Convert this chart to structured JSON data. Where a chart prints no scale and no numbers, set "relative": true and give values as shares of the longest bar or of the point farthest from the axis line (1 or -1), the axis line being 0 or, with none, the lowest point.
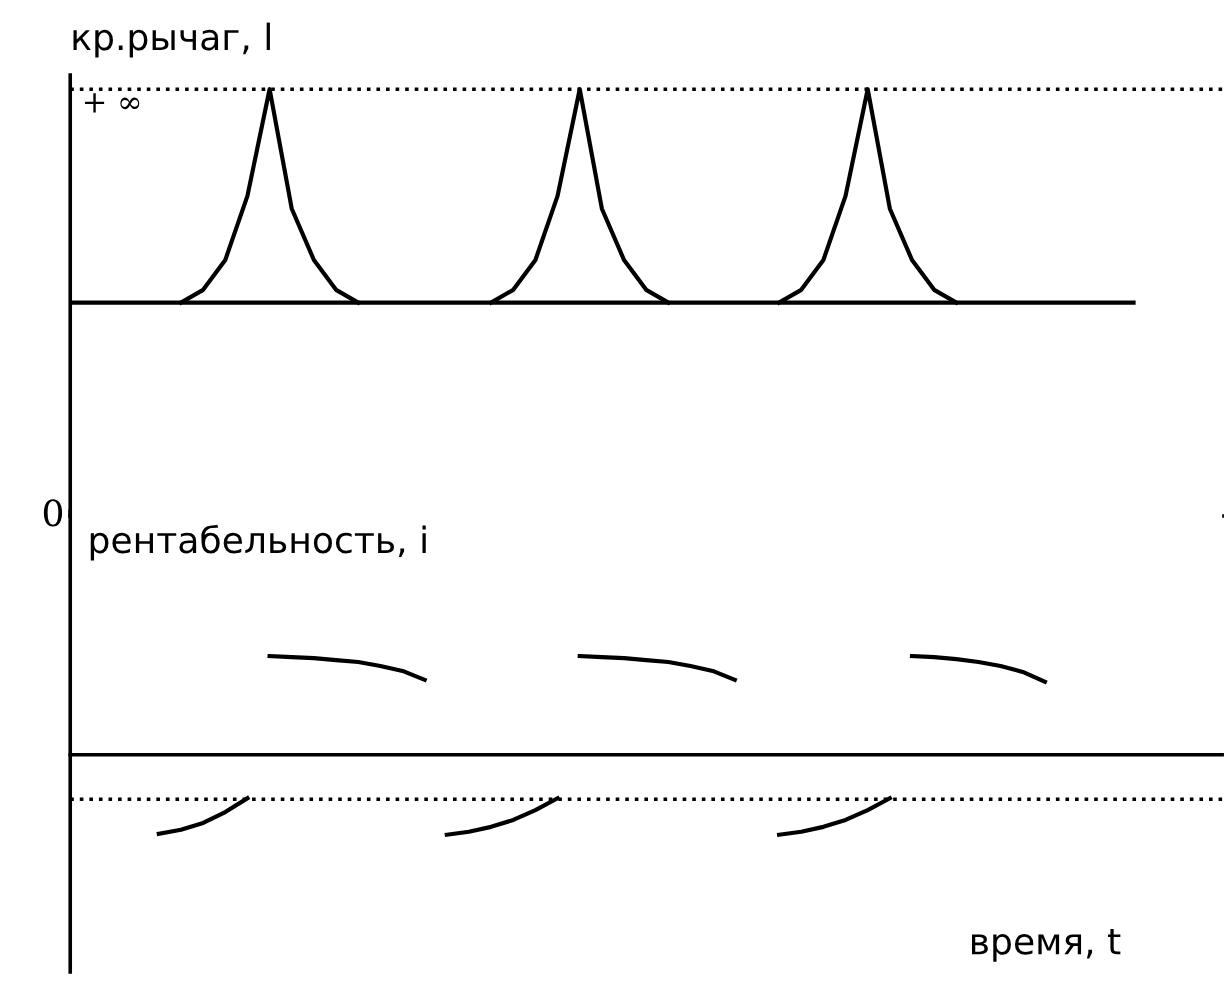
{
  "chart_data": [
    {
      "type": "line",
      "ylabel": "кр.рычаг, l",
      "relative": true,
      "marker": "none",
      "line_style": "solid",
      "categories": [
        null,
        null,
        null,
        null,
        null,
        null,
        null,
        null,
        null,
        null,
        null,
        null,
        null,
        null,
        null,
        null,
        null,
        null,
        null,
        null,
        null,
        null,
        null,
        null,
        null,
        null,
        null,
        null,
        null,
        null,
        null,
        null,
        null,
        null,
        null,
        null,
        null,
        null,
        null,
        null,
        null,
        null,
        null,
        null,
        null,
        null,
        null,
        null,
        null,
        null,
        null
      ],
      "annotations": [
        "0"
      ],
      "ref_lines": [
        {
          "axis": "y",
          "value": 1,
          "label": "+ ∞",
          "line_style": "dotted",
          "color": "#000000"
        }
      ],
      "series": [
        {
          "color": "#000000",
          "values": [
            0.5,
            0.5,
            0.5,
            0.5,
            0.5,
            0.5,
            0.5,
            0.5,
            0.5,
            0.5,
            0.5,
            0.5,
            0.5,
            0.5,
            0.5,
            0.5,
            0.5,
            0.5,
            0.5,
            0.5,
            0.5,
            0.5,
            0.5,
            0.5,
            0.5,
            0.5,
            0.5,
            0.5,
            0.5,
            0.5,
            0.5,
            0.5,
            0.5,
            0.5,
            0.5,
            0.5,
            0.5,
            0.5,
            0.5,
            0.5,
            0.5,
            0.5,
            0.5,
            0.5,
            0.5,
            0.5,
            0.5,
            0.5,
            0.5,
            null,
            null
          ]
        },
        {
          "color": "#000000",
          "values": [
            null,
            null,
            null,
            null,
            null,
            0.5,
            0.53,
            0.6,
            0.75,
            1,
            0.72,
            0.6,
            0.53,
            0.5,
            null,
            null,
            null,
            null,
            null,
            null,
            null,
            null,
            null,
            null,
            null,
            null,
            null,
            null,
            null,
            null,
            null,
            null,
            null,
            null,
            null,
            null,
            null,
            null,
            null,
            null,
            null,
            null,
            null,
            null,
            null,
            null,
            null,
            null,
            null,
            null,
            null
          ]
        },
        {
          "color": "#000000",
          "values": [
            null,
            null,
            null,
            null,
            null,
            null,
            null,
            null,
            null,
            null,
            null,
            null,
            null,
            null,
            null,
            null,
            null,
            null,
            null,
            0.5,
            0.53,
            0.6,
            0.75,
            1,
            0.72,
            0.6,
            0.53,
            0.5,
            null,
            null,
            null,
            null,
            null,
            null,
            null,
            null,
            null,
            null,
            null,
            null,
            null,
            null,
            null,
            null,
            null,
            null,
            null,
            null,
            null,
            null,
            null
          ]
        },
        {
          "color": "#000000",
          "values": [
            null,
            null,
            null,
            null,
            null,
            null,
            null,
            null,
            null,
            null,
            null,
            null,
            null,
            null,
            null,
            null,
            null,
            null,
            null,
            null,
            null,
            null,
            null,
            null,
            null,
            null,
            null,
            null,
            null,
            null,
            null,
            null,
            0.5,
            0.53,
            0.6,
            0.75,
            1,
            0.72,
            0.6,
            0.53,
            0.5,
            null,
            null,
            null,
            null,
            null,
            null,
            null,
            null,
            null,
            null
          ]
        }
      ]
    },
    {
      "type": "line",
      "ylabel": "рентабельность, i",
      "xlabel": "время, t",
      "relative": true,
      "marker": "none",
      "line_style": "solid",
      "categories": [
        null,
        null,
        null,
        null,
        null,
        null,
        null,
        null,
        null,
        null,
        null,
        null,
        null,
        null,
        null,
        null,
        null,
        null,
        null,
        null,
        null,
        null,
        null,
        null,
        null,
        null,
        null,
        null,
        null,
        null,
        null,
        null,
        null,
        null,
        null,
        null,
        null,
        null,
        null,
        null,
        null,
        null,
        null,
        null,
        null,
        null,
        null,
        null,
        null,
        null,
        null
      ],
      "ref_lines": [
        {
          "axis": "y",
          "value": -0.45,
          "line_style": "dotted",
          "color": "#000000"
        }
      ],
      "series": [
        {
          "color": "#000000",
          "values": [
            null,
            null,
            null,
            null,
            null,
            null,
            null,
            null,
            null,
            1,
            0.99,
            0.98,
            0.96,
            0.94,
            0.9,
            0.85,
            0.76,
            null,
            null,
            null,
            null,
            null,
            null,
            null,
            null,
            null,
            null,
            null,
            null,
            null,
            null,
            null,
            null,
            null,
            null,
            null,
            null,
            null,
            null,
            null,
            null,
            null,
            null,
            null,
            null,
            null,
            null,
            null,
            null,
            null,
            null
          ]
        },
        {
          "color": "#000000",
          "values": [
            null,
            null,
            null,
            null,
            null,
            null,
            null,
            null,
            null,
            null,
            null,
            null,
            null,
            null,
            null,
            null,
            null,
            null,
            null,
            null,
            null,
            null,
            null,
            1,
            0.99,
            0.98,
            0.96,
            0.94,
            0.9,
            0.85,
            0.76,
            null,
            null,
            null,
            null,
            null,
            null,
            null,
            null,
            null,
            null,
            null,
            null,
            null,
            null,
            null,
            null,
            null,
            null,
            null,
            null
          ]
        },
        {
          "color": "#000000",
          "values": [
            null,
            null,
            null,
            null,
            null,
            null,
            null,
            null,
            null,
            null,
            null,
            null,
            null,
            null,
            null,
            null,
            null,
            null,
            null,
            null,
            null,
            null,
            null,
            null,
            null,
            null,
            null,
            null,
            null,
            null,
            null,
            null,
            null,
            null,
            null,
            null,
            null,
            null,
            1,
            0.99,
            0.97,
            0.94,
            0.9,
            0.84,
            0.74,
            null,
            null,
            null,
            null,
            null,
            null
          ]
        },
        {
          "color": "#000000",
          "values": [
            null,
            null,
            null,
            null,
            -0.8,
            -0.76,
            -0.69,
            -0.58,
            -0.44,
            null,
            null,
            null,
            null,
            null,
            null,
            null,
            null,
            null,
            null,
            null,
            null,
            null,
            null,
            null,
            null,
            null,
            null,
            null,
            null,
            null,
            null,
            null,
            null,
            null,
            null,
            null,
            null,
            null,
            null,
            null,
            null,
            null,
            null,
            null,
            null,
            null,
            null,
            null,
            null,
            null,
            null
          ]
        },
        {
          "color": "#000000",
          "values": [
            null,
            null,
            null,
            null,
            null,
            null,
            null,
            null,
            null,
            null,
            null,
            null,
            null,
            null,
            null,
            null,
            null,
            -0.81,
            -0.78,
            -0.73,
            -0.66,
            -0.56,
            -0.44,
            null,
            null,
            null,
            null,
            null,
            null,
            null,
            null,
            null,
            null,
            null,
            null,
            null,
            null,
            null,
            null,
            null,
            null,
            null,
            null,
            null,
            null,
            null,
            null,
            null,
            null,
            null,
            null
          ]
        },
        {
          "color": "#000000",
          "values": [
            null,
            null,
            null,
            null,
            null,
            null,
            null,
            null,
            null,
            null,
            null,
            null,
            null,
            null,
            null,
            null,
            null,
            null,
            null,
            null,
            null,
            null,
            null,
            null,
            null,
            null,
            null,
            null,
            null,
            null,
            null,
            null,
            -0.81,
            -0.78,
            -0.73,
            -0.66,
            -0.56,
            -0.44,
            null,
            null,
            null,
            null,
            null,
            null,
            null,
            null,
            null,
            null,
            null,
            null,
            null
          ]
        }
      ]
    }
  ]
}
